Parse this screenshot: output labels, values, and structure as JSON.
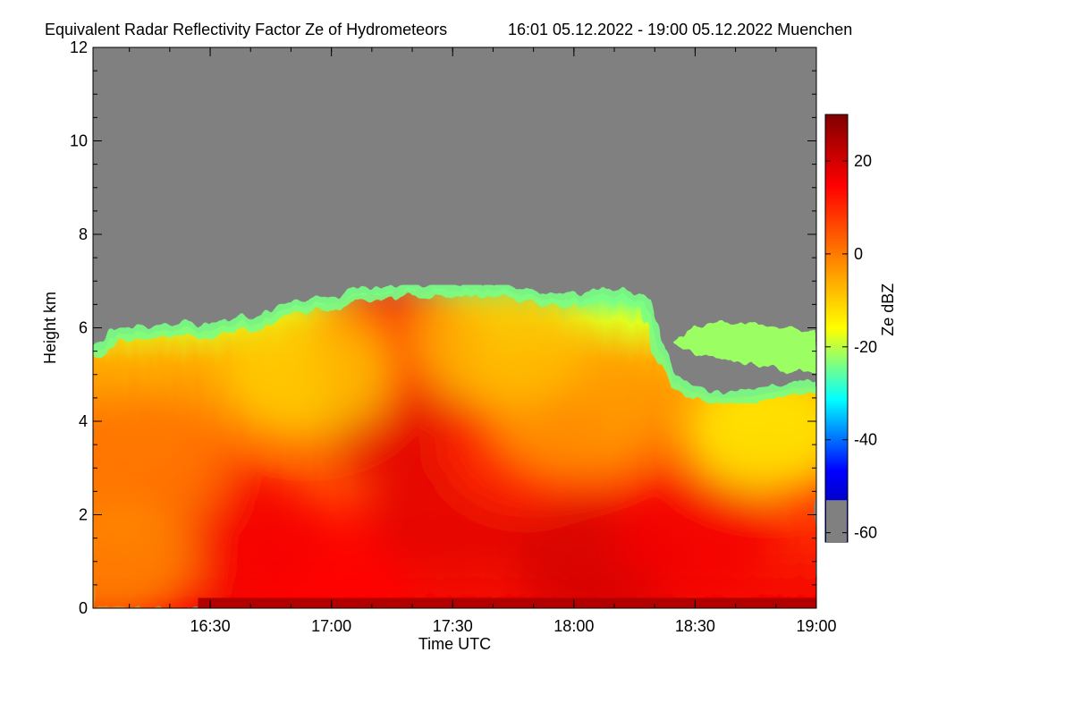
{
  "chart_data": {
    "type": "heatmap",
    "title": "Equivalent Radar Reflectivity Factor Ze of Hydrometeors",
    "subtitle": "16:01 05.12.2022 - 19:00 05.12.2022 Muenchen",
    "xlabel": "Time UTC",
    "ylabel": "Height km",
    "colorbar_label": "Ze dBZ",
    "x_tick_labels": [
      "16:30",
      "17:00",
      "17:30",
      "18:00",
      "18:30",
      "19:00"
    ],
    "x_ticks_hours": [
      16.5,
      17.0,
      17.5,
      18.0,
      18.5,
      19.0
    ],
    "xlim_hours": [
      16.0167,
      19.0
    ],
    "y_tick_labels": [
      "0",
      "2",
      "4",
      "6",
      "8",
      "10",
      "12"
    ],
    "y_ticks": [
      0,
      2,
      4,
      6,
      8,
      10,
      12
    ],
    "ylim": [
      0,
      12
    ],
    "colorbar_tick_labels": [
      "20",
      "0",
      "-20",
      "-40",
      "-60"
    ],
    "colorbar_ticks": [
      20,
      0,
      -20,
      -40,
      -60
    ],
    "colorbar_range": [
      -62,
      30
    ],
    "no_data_color": "#808080",
    "colormap": [
      "#000080",
      "#0000ff",
      "#00ffff",
      "#ffff00",
      "#ff8000",
      "#ff0000",
      "#800000"
    ],
    "echo_top_km": [
      [
        16.02,
        5.4
      ],
      [
        16.1,
        5.8
      ],
      [
        16.2,
        5.9
      ],
      [
        16.3,
        5.9
      ],
      [
        16.4,
        6.0
      ],
      [
        16.5,
        5.9
      ],
      [
        16.6,
        6.1
      ],
      [
        16.7,
        6.1
      ],
      [
        16.8,
        6.4
      ],
      [
        16.9,
        6.5
      ],
      [
        17.0,
        6.5
      ],
      [
        17.1,
        6.7
      ],
      [
        17.2,
        6.7
      ],
      [
        17.3,
        6.8
      ],
      [
        17.4,
        6.8
      ],
      [
        17.5,
        6.8
      ],
      [
        17.6,
        6.8
      ],
      [
        17.7,
        6.8
      ],
      [
        17.8,
        6.7
      ],
      [
        17.9,
        6.6
      ],
      [
        18.0,
        6.6
      ],
      [
        18.1,
        6.7
      ],
      [
        18.2,
        6.7
      ],
      [
        18.3,
        6.5
      ],
      [
        18.35,
        5.5
      ],
      [
        18.42,
        4.8
      ],
      [
        18.5,
        4.6
      ],
      [
        18.6,
        4.5
      ],
      [
        18.7,
        4.5
      ],
      [
        18.8,
        4.6
      ],
      [
        18.9,
        4.7
      ],
      [
        19.0,
        4.7
      ]
    ],
    "upper_cloud_patch": {
      "x_hours": [
        18.42,
        19.0
      ],
      "height_km": [
        5.2,
        6.2
      ],
      "ze_dbz": -22
    },
    "ze_features": [
      {
        "x_hours": 17.0,
        "height_km": 0.6,
        "ze_dbz": 14
      },
      {
        "x_hours": 17.3,
        "height_km": 4.0,
        "ze_dbz": 18
      },
      {
        "x_hours": 17.25,
        "height_km": 5.8,
        "ze_dbz": 12
      },
      {
        "x_hours": 17.5,
        "height_km": 2.0,
        "ze_dbz": 18
      },
      {
        "x_hours": 17.8,
        "height_km": 3.4,
        "ze_dbz": 10
      },
      {
        "x_hours": 18.0,
        "height_km": 4.2,
        "ze_dbz": -4
      },
      {
        "x_hours": 18.1,
        "height_km": 1.0,
        "ze_dbz": 20
      },
      {
        "x_hours": 18.5,
        "height_km": 1.6,
        "ze_dbz": 16
      },
      {
        "x_hours": 16.6,
        "height_km": 1.6,
        "ze_dbz": 16
      },
      {
        "x_hours": 16.2,
        "height_km": 2.8,
        "ze_dbz": 0
      },
      {
        "x_hours": 16.1,
        "height_km": 1.0,
        "ze_dbz": -2
      },
      {
        "x_hours": 18.8,
        "height_km": 3.8,
        "ze_dbz": -14
      },
      {
        "x_hours": 17.7,
        "height_km": 5.6,
        "ze_dbz": -8
      },
      {
        "x_hours": 16.9,
        "height_km": 5.0,
        "ze_dbz": -10
      }
    ]
  }
}
